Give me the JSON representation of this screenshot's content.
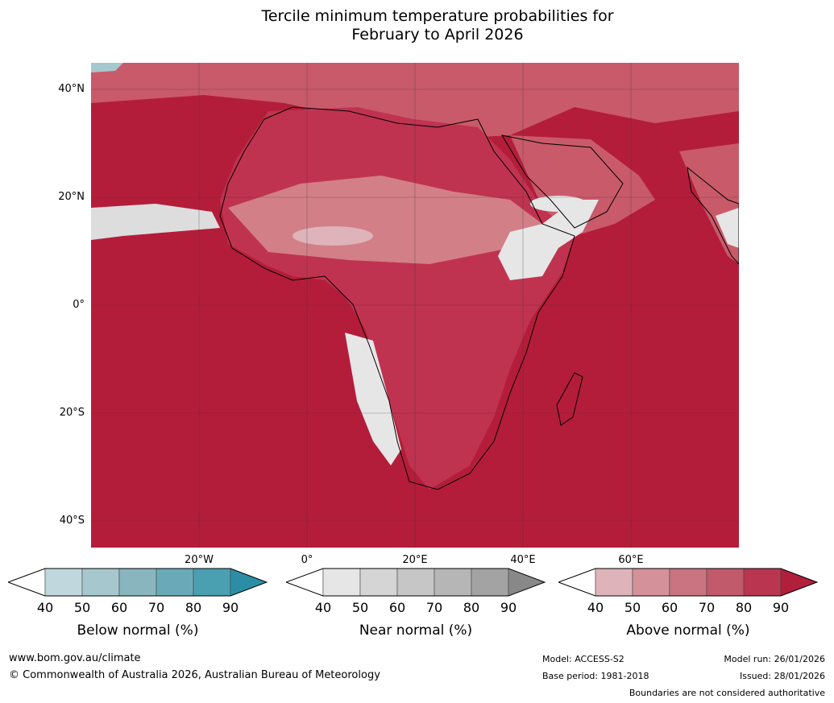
{
  "title": {
    "line1": "Tercile minimum temperature probabilities for",
    "line2": "February to April 2026"
  },
  "map": {
    "lat_labels": [
      "40°N",
      "20°N",
      "0°",
      "20°S",
      "40°S"
    ],
    "lon_labels": [
      "20°W",
      "0°",
      "20°E",
      "40°E",
      "60°E"
    ],
    "colors": {
      "ocean_high": "#b41d3a",
      "above_80": "#c03350",
      "above_70": "#c95a6a",
      "above_60": "#d27f88",
      "above_50": "#dfb3ba",
      "near": "#e6e6e6",
      "below": "#c1d7de"
    }
  },
  "legends": [
    {
      "caption": "Below normal (%)",
      "ticks": [
        "40",
        "50",
        "60",
        "70",
        "80",
        "90"
      ],
      "colors": [
        "#ffffff",
        "#c1d7de",
        "#a6c7cd",
        "#89b5bf",
        "#6aaab8",
        "#4a9fb0",
        "#2c8ea6"
      ]
    },
    {
      "caption": "Near normal (%)",
      "ticks": [
        "40",
        "50",
        "60",
        "70",
        "80",
        "90"
      ],
      "colors": [
        "#ffffff",
        "#e6e6e6",
        "#d5d5d5",
        "#c6c6c6",
        "#b6b6b6",
        "#a3a3a3",
        "#888888"
      ]
    },
    {
      "caption": "Above normal (%)",
      "ticks": [
        "40",
        "50",
        "60",
        "70",
        "80",
        "90"
      ],
      "colors": [
        "#ffffff",
        "#dfb3ba",
        "#d4919a",
        "#c97480",
        "#c15a6a",
        "#b93550",
        "#b01f3c"
      ]
    }
  ],
  "footer": {
    "website": "www.bom.gov.au/climate",
    "copyright": "© Commonwealth of Australia 2026, Australian Bureau of Meteorology",
    "model": "Model: ACCESS-S2",
    "base_period": "Base period: 1981-2018",
    "model_run": "Model run: 26/01/2026",
    "issued": "Issued: 28/01/2026",
    "disclaimer": "Boundaries are not considered authoritative"
  }
}
